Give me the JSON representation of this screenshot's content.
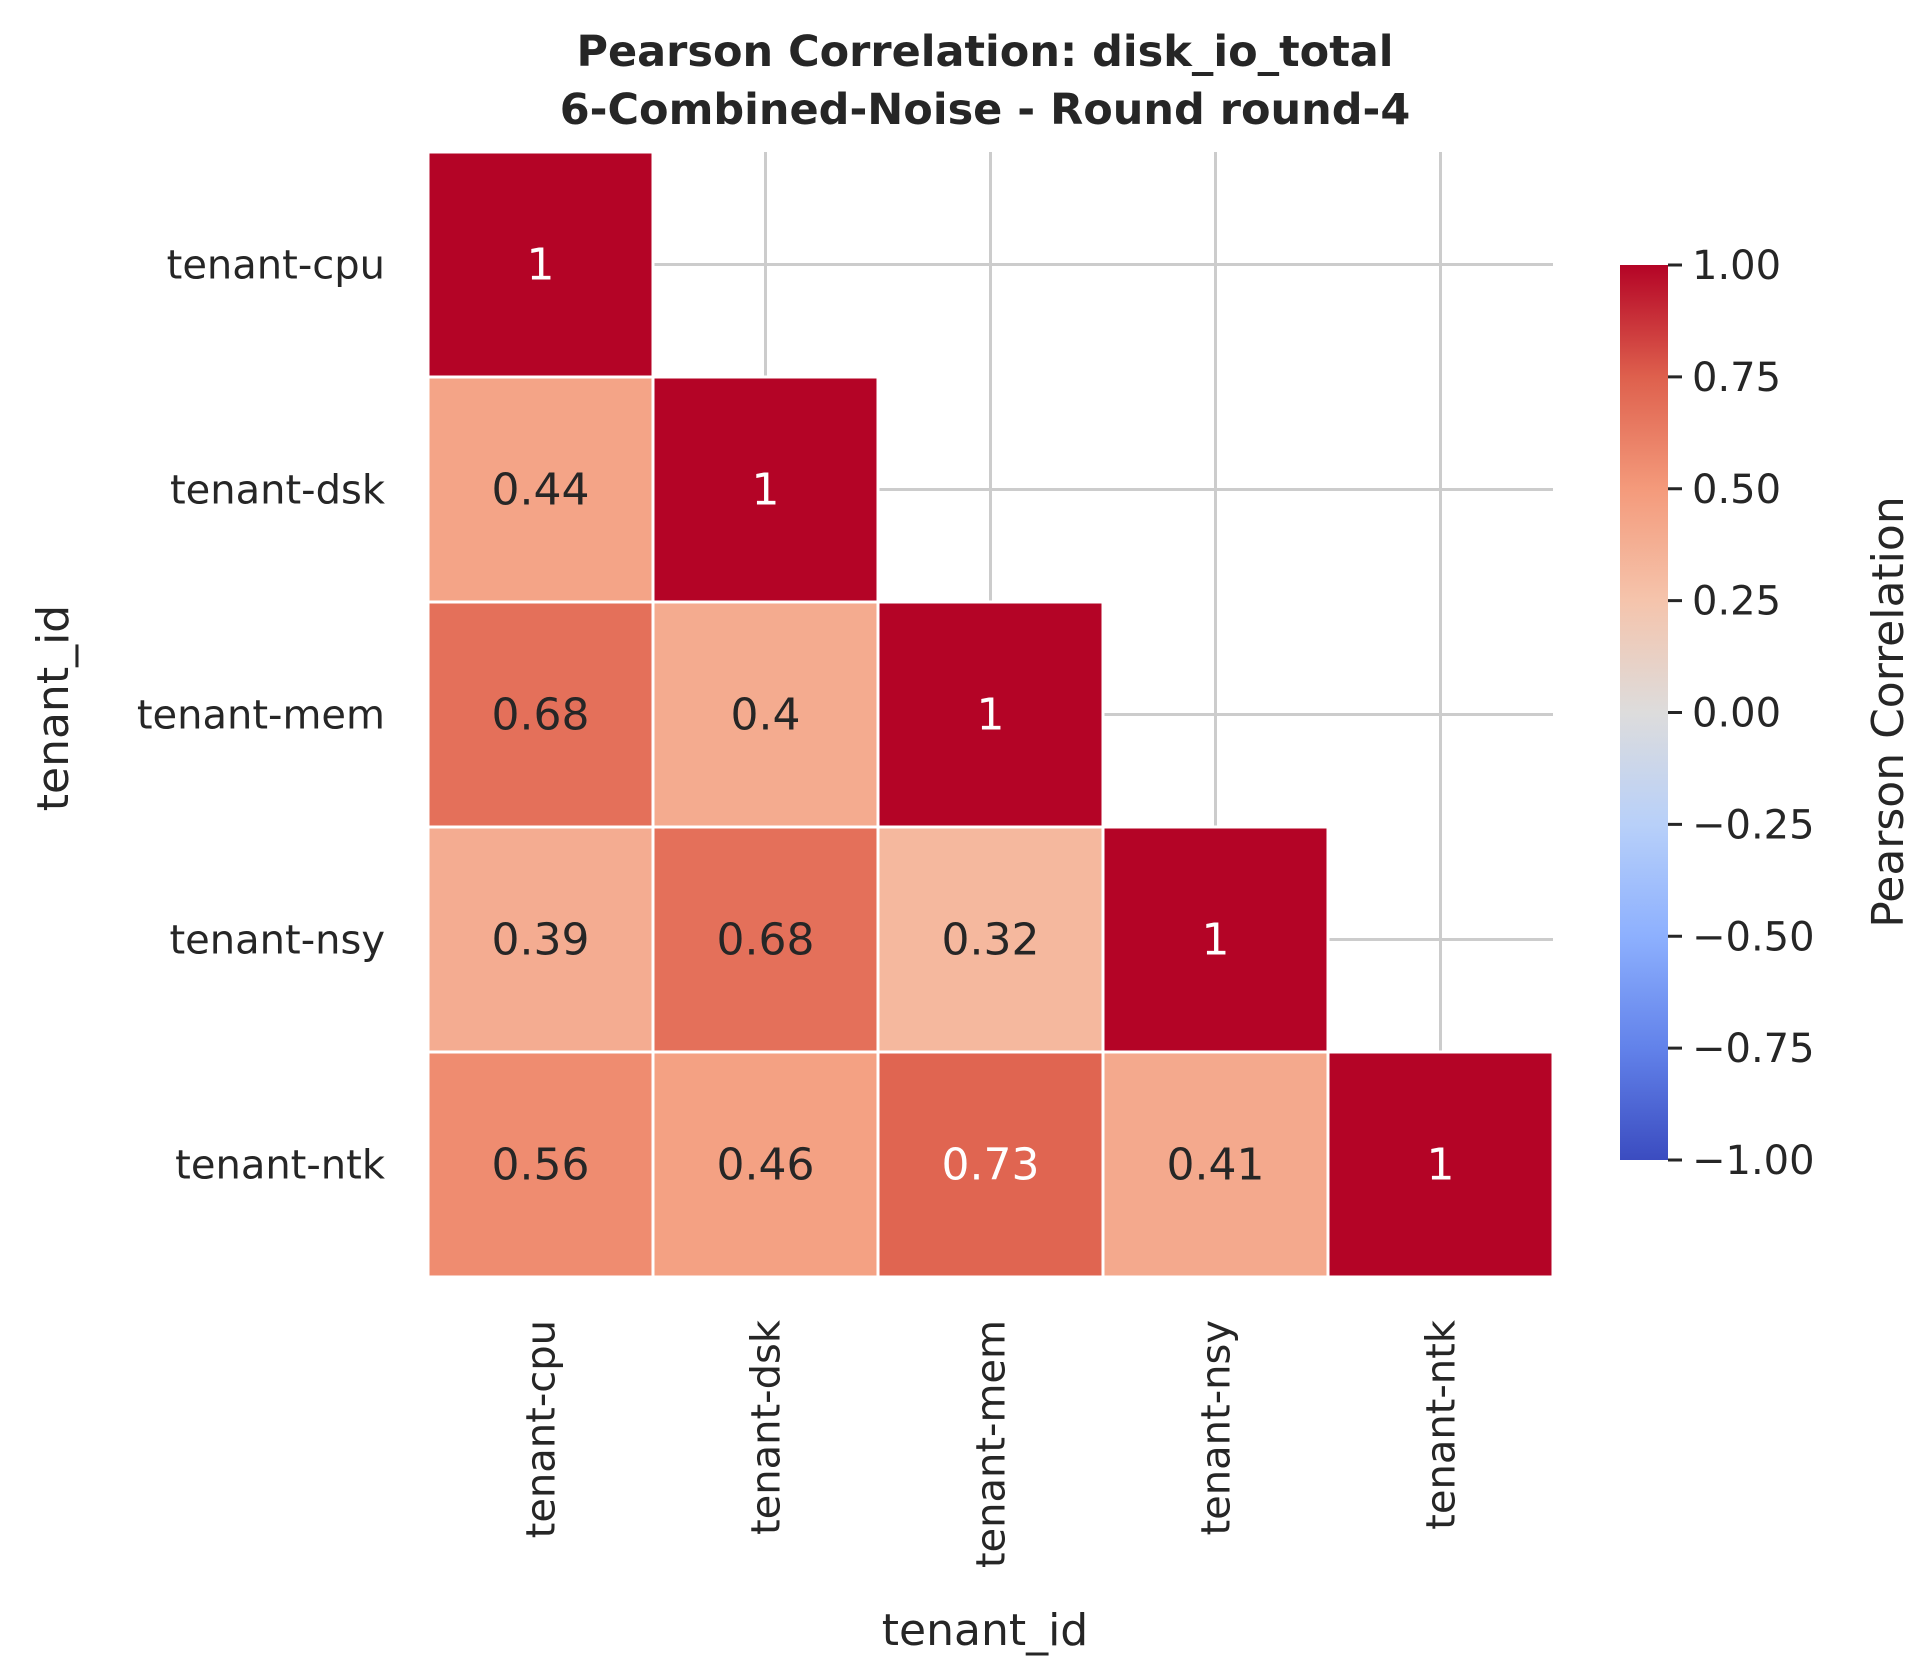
{
  "chart_data": {
    "type": "heatmap",
    "title": "Pearson Correlation: disk_io_total",
    "subtitle": "6-Combined-Noise - Round round-4",
    "xlabel": "tenant_id",
    "ylabel": "tenant_id",
    "categories": [
      "tenant-cpu",
      "tenant-dsk",
      "tenant-mem",
      "tenant-nsy",
      "tenant-ntk"
    ],
    "mask": "upper-triangle",
    "matrix": [
      [
        1,
        null,
        null,
        null,
        null
      ],
      [
        0.44,
        1,
        null,
        null,
        null
      ],
      [
        0.68,
        0.4,
        1,
        null,
        null
      ],
      [
        0.39,
        0.68,
        0.32,
        1,
        null
      ],
      [
        0.56,
        0.46,
        0.73,
        0.41,
        1
      ]
    ],
    "colormap": "coolwarm",
    "vmin": -1,
    "vmax": 1,
    "grid": true,
    "colorbar": {
      "label": "Pearson Correlation",
      "ticks": [
        "1.00",
        "0.75",
        "0.50",
        "0.25",
        "0.00",
        "−0.25",
        "−0.50",
        "−0.75",
        "−1.00"
      ],
      "tick_values": [
        1,
        0.75,
        0.5,
        0.25,
        0,
        -0.25,
        -0.5,
        -0.75,
        -1
      ]
    }
  }
}
